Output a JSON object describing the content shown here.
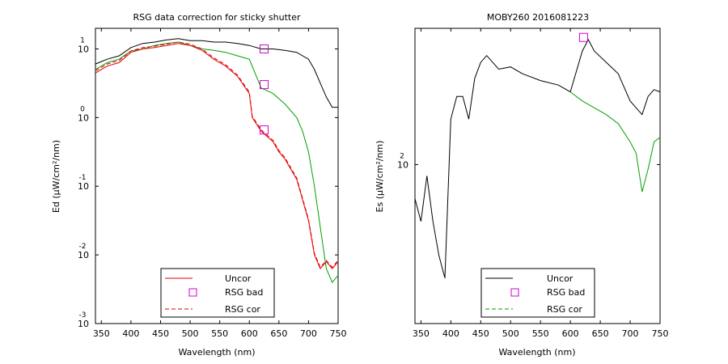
{
  "chart_data": [
    {
      "type": "line",
      "title": "RSG data correction for sticky shutter",
      "xlabel": "Wavelength (nm)",
      "ylabel": "Ed (µW/cm²/nm)",
      "xlim": [
        340,
        750
      ],
      "yscale": "log",
      "ylim_exp": [
        -3,
        1.3
      ],
      "x_ticks": [
        "350",
        "400",
        "450",
        "500",
        "550",
        "600",
        "650",
        "700",
        "750"
      ],
      "y_ticks": [
        {
          "base": "10",
          "exp": "1",
          "value": 1
        },
        {
          "base": "10",
          "exp": "0",
          "value": 0
        },
        {
          "base": "10",
          "exp": "-1",
          "value": -1
        },
        {
          "base": "10",
          "exp": "-2",
          "value": -2
        },
        {
          "base": "10",
          "exp": "-3",
          "value": -3
        }
      ],
      "legend": {
        "placement": "bottom-center",
        "entries": [
          {
            "label": "Uncor",
            "style": "line",
            "color": "#e00000"
          },
          {
            "label": "RSG bad",
            "style": "square",
            "color": "#d000d0"
          },
          {
            "label": "RSG cor",
            "style": "dashed",
            "color": "#e00000"
          }
        ]
      },
      "series": [
        {
          "style": "solid",
          "color": "#000000",
          "x": [
            340,
            360,
            380,
            400,
            420,
            440,
            460,
            480,
            500,
            520,
            540,
            560,
            580,
            600,
            620,
            640,
            660,
            680,
            700,
            710,
            720,
            730,
            740,
            750
          ],
          "log10": [
            0.78,
            0.85,
            0.9,
            1.02,
            1.08,
            1.1,
            1.13,
            1.15,
            1.12,
            1.12,
            1.1,
            1.1,
            1.08,
            1.05,
            1.0,
            1.0,
            0.98,
            0.95,
            0.85,
            0.7,
            0.5,
            0.3,
            0.15,
            0.15
          ]
        },
        {
          "style": "solid",
          "color": "#00a000",
          "x": [
            340,
            360,
            380,
            400,
            420,
            440,
            460,
            480,
            500,
            520,
            540,
            560,
            580,
            600,
            620,
            640,
            660,
            680,
            690,
            700,
            710,
            720,
            730,
            740,
            750
          ],
          "log10": [
            0.7,
            0.8,
            0.85,
            0.97,
            1.0,
            1.05,
            1.08,
            1.1,
            1.05,
            1.0,
            0.98,
            0.95,
            0.9,
            0.85,
            0.43,
            0.35,
            0.2,
            0.0,
            -0.2,
            -0.5,
            -1.0,
            -1.6,
            -2.2,
            -2.4,
            -2.3
          ]
        },
        {
          "style": "solid",
          "color": "#e00000",
          "x": [
            340,
            360,
            380,
            400,
            420,
            440,
            460,
            480,
            500,
            520,
            540,
            560,
            580,
            600,
            605,
            620,
            640,
            650,
            660,
            680,
            700,
            710,
            720,
            730,
            740,
            750
          ],
          "log10": [
            0.65,
            0.75,
            0.8,
            0.95,
            1.0,
            1.02,
            1.05,
            1.08,
            1.05,
            0.98,
            0.85,
            0.75,
            0.6,
            0.35,
            0.0,
            -0.2,
            -0.35,
            -0.5,
            -0.6,
            -0.9,
            -1.5,
            -2.0,
            -2.2,
            -2.1,
            -2.2,
            -2.1
          ]
        },
        {
          "style": "dashed",
          "color": "#e00000",
          "x": [
            340,
            360,
            380,
            400,
            420,
            440,
            460,
            480,
            500,
            520,
            540,
            560,
            580,
            600,
            605,
            620,
            640,
            650,
            660,
            680,
            700,
            710,
            720,
            730,
            740,
            750
          ],
          "log10": [
            0.68,
            0.78,
            0.83,
            0.97,
            1.02,
            1.04,
            1.07,
            1.1,
            1.07,
            1.0,
            0.87,
            0.77,
            0.62,
            0.37,
            0.02,
            -0.18,
            -0.33,
            -0.48,
            -0.58,
            -0.88,
            -1.48,
            -1.98,
            -2.18,
            -2.08,
            -2.18,
            -2.08
          ]
        }
      ],
      "markers": {
        "style": "square",
        "color": "#d000d0",
        "x": [
          625,
          625,
          625
        ],
        "log10": [
          1.0,
          0.48,
          -0.18
        ]
      }
    },
    {
      "type": "line",
      "title": "MOBY260  2016081223",
      "xlabel": "Wavelength (nm)",
      "ylabel": "Es (µW/cm²/nm)",
      "xlim": [
        340,
        750
      ],
      "yscale": "log",
      "ylim_exp": [
        1.3,
        2.6
      ],
      "x_ticks": [
        "350",
        "400",
        "450",
        "500",
        "550",
        "600",
        "650",
        "700",
        "750"
      ],
      "y_ticks": [
        {
          "base": "10",
          "exp": "2",
          "value": 2
        }
      ],
      "legend": {
        "placement": "bottom-center",
        "entries": [
          {
            "label": "Uncor",
            "style": "line",
            "color": "#000000"
          },
          {
            "label": "RSG bad",
            "style": "square",
            "color": "#d000d0"
          },
          {
            "label": "RSG cor",
            "style": "dashed",
            "color": "#00a000"
          }
        ]
      },
      "series": [
        {
          "style": "solid",
          "color": "#000000",
          "x": [
            340,
            350,
            360,
            370,
            380,
            390,
            400,
            410,
            420,
            430,
            440,
            450,
            460,
            480,
            500,
            520,
            550,
            580,
            600,
            620,
            630,
            640,
            660,
            680,
            700,
            710,
            720,
            730,
            740,
            750
          ],
          "log10": [
            1.85,
            1.75,
            1.95,
            1.75,
            1.6,
            1.5,
            2.2,
            2.3,
            2.3,
            2.2,
            2.38,
            2.45,
            2.48,
            2.42,
            2.43,
            2.4,
            2.37,
            2.35,
            2.32,
            2.5,
            2.55,
            2.5,
            2.45,
            2.4,
            2.28,
            2.25,
            2.22,
            2.3,
            2.33,
            2.32
          ]
        },
        {
          "style": "solid",
          "color": "#00a000",
          "x": [
            600,
            620,
            640,
            660,
            680,
            700,
            710,
            720,
            730,
            740,
            750
          ],
          "log10": [
            2.32,
            2.28,
            2.25,
            2.22,
            2.18,
            2.1,
            2.05,
            1.88,
            1.98,
            2.1,
            2.12
          ]
        }
      ],
      "markers": {
        "style": "square",
        "color": "#d000d0",
        "x": [
          622
        ],
        "log10": [
          2.56
        ]
      }
    }
  ]
}
